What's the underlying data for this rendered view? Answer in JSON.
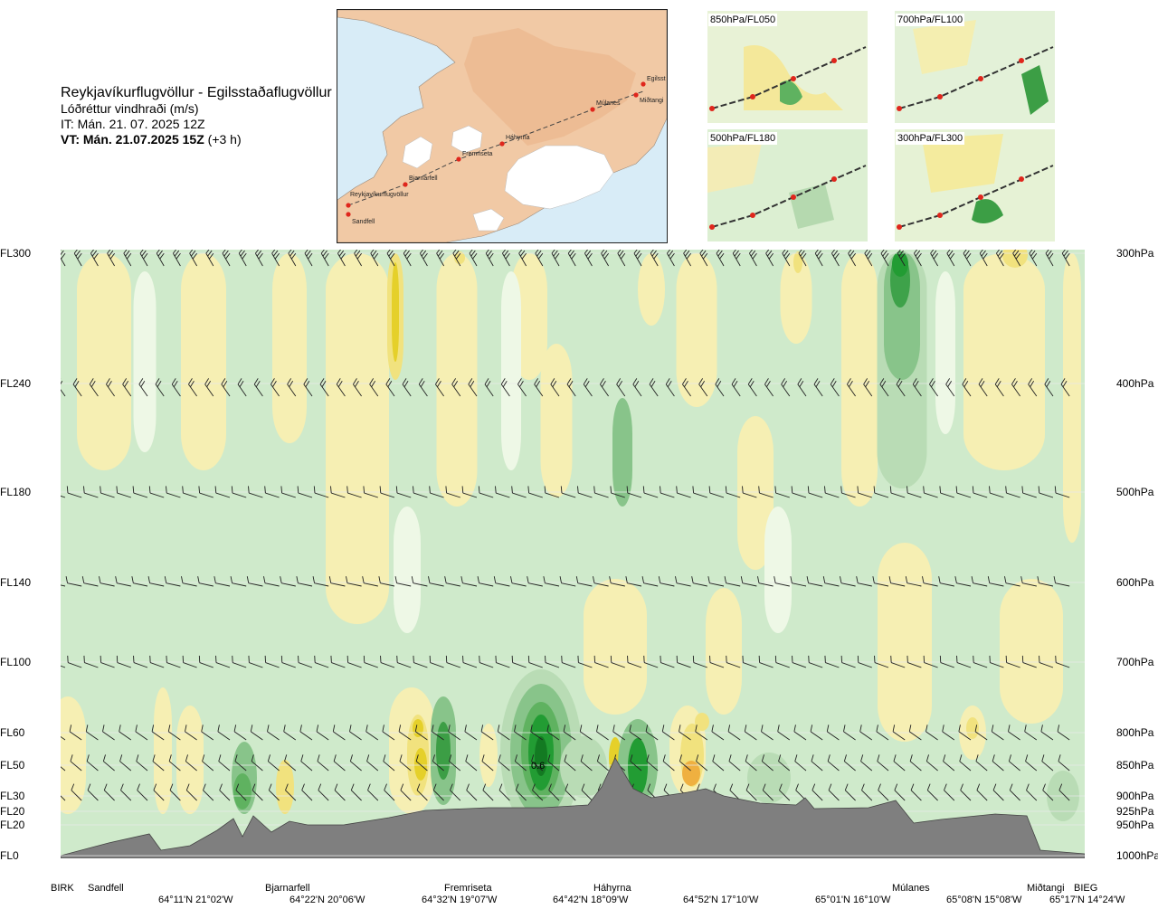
{
  "header": {
    "title": "Reykjavíkurflugvöllur - Egilsstaðaflugvöllur",
    "subtitle": "Lóðréttur vindhraði (m/s)",
    "it": "IT: Mán. 21. 07. 2025 12Z",
    "vt_bold": "VT: Mán. 21.07.2025 15Z",
    "vt_offset": "(+3 h)"
  },
  "map": {
    "stations": [
      "Reykjavíkurflugvöllur",
      "Sandfell",
      "Bjarnarfell",
      "Fremriseta",
      "Háhyrna",
      "Múlanes",
      "Miðtangi",
      "Egilsst"
    ],
    "colors": {
      "sea": "#d8ecf7",
      "land": "#f1c9a5",
      "ice": "#ffffff",
      "route": "#e0261c"
    }
  },
  "panels": [
    {
      "label": "850hPa/FL050"
    },
    {
      "label": "700hPa/FL100"
    },
    {
      "label": "500hPa/FL180"
    },
    {
      "label": "300hPa/FL300"
    }
  ],
  "chart_data": {
    "type": "heatmap",
    "title": "Lóðréttur vindhraði (m/s)",
    "left_axis": [
      "FL300",
      "FL240",
      "FL180",
      "FL140",
      "FL100",
      "FL60",
      "FL50",
      "FL30",
      "FL20",
      "FL20",
      "FL0"
    ],
    "right_axis": [
      "300hPa",
      "400hPa",
      "500hPa",
      "600hPa",
      "700hPa",
      "800hPa",
      "850hPa",
      "900hPa",
      "925hPa",
      "950hPa",
      "1000hPa"
    ],
    "waypoints": [
      "BIRK",
      "Sandfell",
      "Bjarnarfell",
      "Fremriseta",
      "Háhyrna",
      "Múlanes",
      "Miðtangi",
      "BIEG"
    ],
    "coords": [
      "64°11'N 21°02'W",
      "64°22'N 20°06'W",
      "64°32'N 19°07'W",
      "64°42'N 18°09'W",
      "64°52'N 17°10'W",
      "65°01'N 16°10'W",
      "65°08'N 15°08'W",
      "65°17'N 14°24'W"
    ],
    "annotations": [
      "0.6"
    ],
    "colors": {
      "strong_up": "#229c33",
      "mid_up": "#88c48a",
      "weak_up": "#b9dcb5",
      "faint_up": "#cfeacb",
      "neutral": "#eef8e6",
      "weak_down": "#f6efb3",
      "mid_down": "#f1e27e",
      "strong_down": "#e5d02a",
      "peak_down": "#efb040",
      "terrain": "#7f7f7f"
    }
  }
}
